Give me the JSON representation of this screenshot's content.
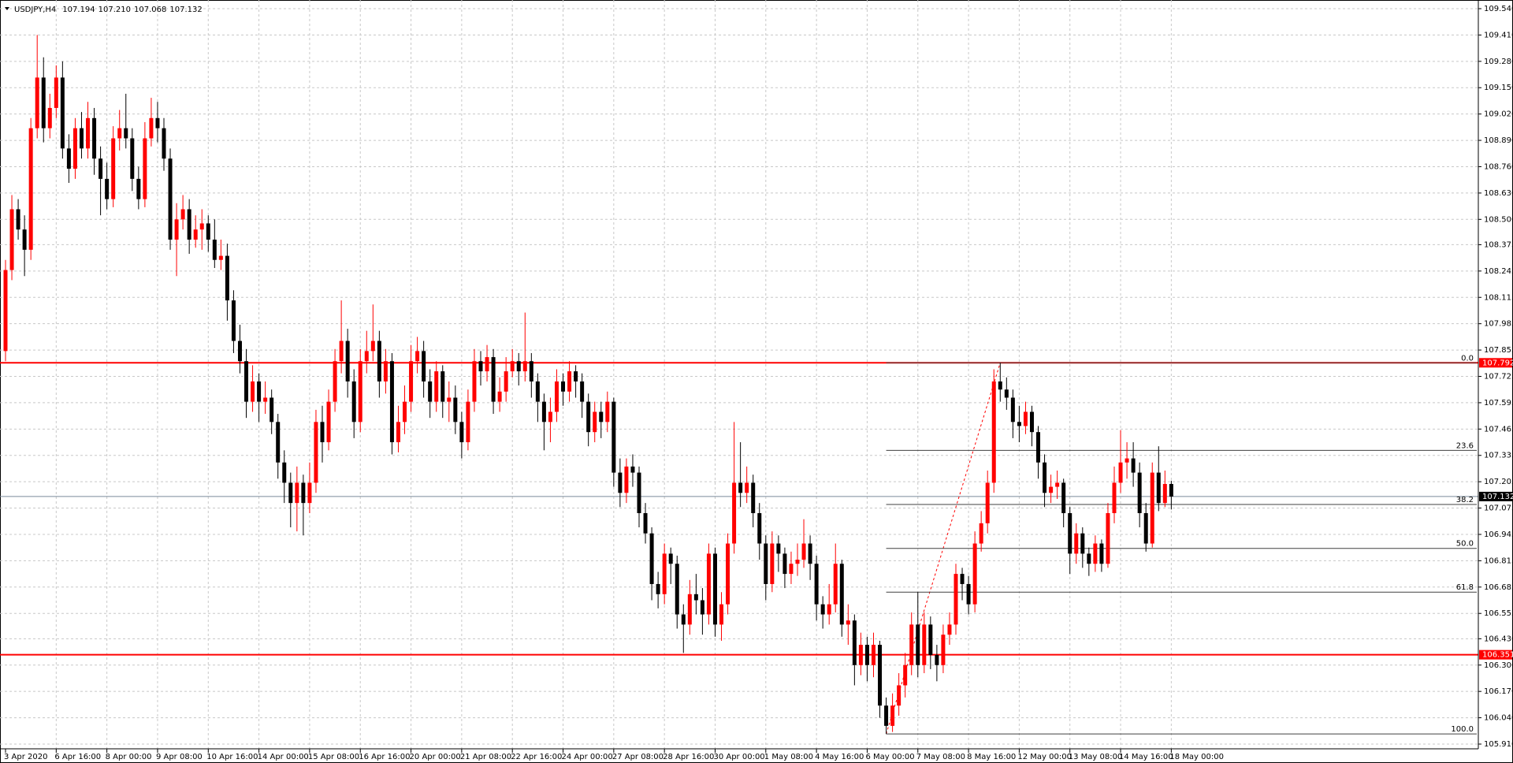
{
  "chart_data": {
    "type": "candlestick",
    "symbol": "USDJPY,H4",
    "header_values": [
      "107.194",
      "107.210",
      "107.068",
      "107.132"
    ],
    "up_color": "#ff0000",
    "down_color": "#000000",
    "grid": true,
    "ylim": [
      105.91,
      109.54
    ],
    "yticks": [
      {
        "value": 105.91,
        "label": "105.910"
      },
      {
        "value": 106.04,
        "label": "106.040"
      },
      {
        "value": 106.17,
        "label": "106.170"
      },
      {
        "value": 106.3,
        "label": "106.300"
      },
      {
        "value": 106.43,
        "label": "106.430"
      },
      106.555,
      106.685,
      106.815,
      106.945,
      107.075,
      107.205,
      107.335,
      107.465,
      107.595,
      107.725,
      107.855,
      107.985,
      108.115,
      108.245,
      108.375,
      {
        "value": 108.5,
        "label": "108.500"
      },
      {
        "value": 108.63,
        "label": "108.630"
      },
      {
        "value": 108.76,
        "label": "108.760"
      },
      {
        "value": 108.89,
        "label": "108.890"
      },
      {
        "value": 109.02,
        "label": "109.020"
      },
      {
        "value": 109.15,
        "label": "109.150"
      },
      {
        "value": 109.28,
        "label": "109.280"
      },
      {
        "value": 109.41,
        "label": "109.410"
      },
      {
        "value": 109.54,
        "label": "109.540"
      }
    ],
    "hlines": [
      {
        "value": 107.792,
        "color": "#ff0000"
      },
      {
        "value": 106.351,
        "color": "#ff0000"
      }
    ],
    "price_line": 107.132,
    "fib_levels": [
      {
        "value": 107.792,
        "label": "0.0"
      },
      {
        "value": 107.36,
        "label": "23.6"
      },
      {
        "value": 107.093,
        "label": "38.2"
      },
      {
        "value": 106.876,
        "label": "50.0"
      },
      {
        "value": 106.66,
        "label": "61.8"
      },
      {
        "value": 105.96,
        "label": "100.0"
      }
    ],
    "categories": [
      "3 Apr 2020",
      null,
      null,
      null,
      null,
      null,
      null,
      null,
      "6 Apr 16:00",
      null,
      null,
      null,
      null,
      null,
      null,
      null,
      "8 Apr 00:00",
      null,
      null,
      null,
      null,
      null,
      null,
      null,
      "9 Apr 08:00",
      null,
      null,
      null,
      null,
      null,
      null,
      null,
      "10 Apr 16:00",
      null,
      null,
      null,
      null,
      null,
      null,
      null,
      "14 Apr 00:00",
      null,
      null,
      null,
      null,
      null,
      null,
      null,
      "15 Apr 08:00",
      null,
      null,
      null,
      null,
      null,
      null,
      null,
      "16 Apr 16:00",
      null,
      null,
      null,
      null,
      null,
      null,
      null,
      "20 Apr 00:00",
      null,
      null,
      null,
      null,
      null,
      null,
      null,
      "21 Apr 08:00",
      null,
      null,
      null,
      null,
      null,
      null,
      null,
      "22 Apr 16:00",
      null,
      null,
      null,
      null,
      null,
      null,
      null,
      "24 Apr 00:00",
      null,
      null,
      null,
      null,
      null,
      null,
      null,
      "27 Apr 08:00",
      null,
      null,
      null,
      null,
      null,
      null,
      null,
      "28 Apr 16:00",
      null,
      null,
      null,
      null,
      null,
      null,
      null,
      "30 Apr 00:00",
      null,
      null,
      null,
      null,
      null,
      null,
      null,
      "1 May 08:00",
      null,
      null,
      null,
      null,
      null,
      null,
      null,
      "4 May 16:00",
      null,
      null,
      null,
      null,
      null,
      null,
      null,
      "6 May 00:00",
      null,
      null,
      null,
      null,
      null,
      null,
      null,
      "7 May 08:00",
      null,
      null,
      null,
      null,
      null,
      null,
      null,
      "8 May 16:00",
      null,
      null,
      null,
      null,
      null,
      null,
      null,
      "12 May 00:00",
      null,
      null,
      null,
      null,
      null,
      null,
      null,
      "13 May 08:00",
      null,
      null,
      null,
      null,
      null,
      null,
      null,
      "14 May 16:00",
      null,
      null,
      null,
      null,
      null,
      null,
      null,
      "18 May 00:00"
    ],
    "ohlc": [
      [
        107.85,
        108.3,
        107.8,
        108.25
      ],
      [
        108.25,
        108.62,
        108.2,
        108.55
      ],
      [
        108.55,
        108.6,
        108.4,
        108.45
      ],
      [
        108.45,
        108.52,
        108.22,
        108.35
      ],
      [
        108.35,
        109.0,
        108.3,
        108.95
      ],
      [
        108.95,
        109.41,
        108.9,
        109.2
      ],
      [
        109.2,
        109.3,
        108.88,
        108.95
      ],
      [
        108.95,
        109.12,
        108.9,
        109.05
      ],
      [
        109.05,
        109.26,
        109.0,
        109.2
      ],
      [
        109.2,
        109.28,
        108.8,
        108.85
      ],
      [
        108.85,
        108.92,
        108.68,
        108.75
      ],
      [
        108.75,
        109.0,
        108.7,
        108.95
      ],
      [
        108.95,
        109.03,
        108.8,
        108.85
      ],
      [
        108.85,
        109.08,
        108.8,
        109.0
      ],
      [
        109.0,
        109.05,
        108.72,
        108.8
      ],
      [
        108.8,
        108.86,
        108.52,
        108.7
      ],
      [
        108.7,
        108.78,
        108.55,
        108.6
      ],
      [
        108.6,
        108.96,
        108.56,
        108.9
      ],
      [
        108.9,
        109.04,
        108.84,
        108.95
      ],
      [
        108.95,
        109.12,
        108.85,
        108.9
      ],
      [
        108.9,
        108.95,
        108.64,
        108.7
      ],
      [
        108.7,
        108.76,
        108.55,
        108.6
      ],
      [
        108.6,
        108.98,
        108.56,
        108.9
      ],
      [
        108.9,
        109.1,
        108.86,
        109.0
      ],
      [
        109.0,
        109.08,
        108.88,
        108.95
      ],
      [
        108.95,
        109.0,
        108.74,
        108.8
      ],
      [
        108.8,
        108.85,
        108.35,
        108.4
      ],
      [
        108.4,
        108.58,
        108.22,
        108.5
      ],
      [
        108.5,
        108.62,
        108.45,
        108.55
      ],
      [
        108.55,
        108.6,
        108.33,
        108.4
      ],
      [
        108.4,
        108.52,
        108.36,
        108.45
      ],
      [
        108.45,
        108.55,
        108.35,
        108.48
      ],
      [
        108.48,
        108.52,
        108.34,
        108.4
      ],
      [
        108.4,
        108.5,
        108.26,
        108.3
      ],
      [
        108.3,
        108.4,
        108.25,
        108.32
      ],
      [
        108.32,
        108.38,
        108.0,
        108.1
      ],
      [
        108.1,
        108.15,
        107.84,
        107.9
      ],
      [
        107.9,
        107.98,
        107.74,
        107.8
      ],
      [
        107.8,
        107.86,
        107.52,
        107.6
      ],
      [
        107.6,
        107.78,
        107.55,
        107.7
      ],
      [
        107.7,
        107.74,
        107.5,
        107.6
      ],
      [
        107.6,
        107.7,
        107.54,
        107.62
      ],
      [
        107.62,
        107.66,
        107.44,
        107.5
      ],
      [
        107.5,
        107.54,
        107.22,
        107.3
      ],
      [
        107.3,
        107.36,
        107.1,
        107.2
      ],
      [
        107.2,
        107.25,
        106.98,
        107.1
      ],
      [
        107.1,
        107.28,
        106.96,
        107.2
      ],
      [
        107.2,
        107.24,
        106.94,
        107.1
      ],
      [
        107.1,
        107.3,
        107.05,
        107.2
      ],
      [
        107.2,
        107.56,
        107.15,
        107.5
      ],
      [
        107.5,
        107.58,
        107.3,
        107.4
      ],
      [
        107.4,
        107.66,
        107.36,
        107.6
      ],
      [
        107.6,
        107.86,
        107.55,
        107.8
      ],
      [
        107.8,
        108.1,
        107.74,
        107.9
      ],
      [
        107.9,
        107.96,
        107.62,
        107.7
      ],
      [
        107.7,
        107.76,
        107.42,
        107.5
      ],
      [
        107.5,
        107.86,
        107.45,
        107.8
      ],
      [
        107.8,
        107.95,
        107.74,
        107.85
      ],
      [
        107.85,
        108.08,
        107.8,
        107.9
      ],
      [
        107.9,
        107.95,
        107.62,
        107.7
      ],
      [
        107.7,
        107.86,
        107.64,
        107.8
      ],
      [
        107.8,
        107.84,
        107.34,
        107.4
      ],
      [
        107.4,
        107.58,
        107.35,
        107.5
      ],
      [
        107.5,
        107.68,
        107.44,
        107.6
      ],
      [
        107.6,
        107.88,
        107.55,
        107.8
      ],
      [
        107.8,
        107.92,
        107.74,
        107.85
      ],
      [
        107.85,
        107.9,
        107.62,
        107.7
      ],
      [
        107.7,
        107.76,
        107.52,
        107.6
      ],
      [
        107.6,
        107.8,
        107.55,
        107.75
      ],
      [
        107.75,
        107.78,
        107.52,
        107.6
      ],
      [
        107.6,
        107.7,
        107.5,
        107.62
      ],
      [
        107.62,
        107.68,
        107.44,
        107.5
      ],
      [
        107.5,
        107.55,
        107.32,
        107.4
      ],
      [
        107.4,
        107.66,
        107.36,
        107.6
      ],
      [
        107.6,
        107.86,
        107.55,
        107.8
      ],
      [
        107.8,
        107.85,
        107.68,
        107.75
      ],
      [
        107.75,
        107.88,
        107.7,
        107.82
      ],
      [
        107.82,
        107.86,
        107.54,
        107.6
      ],
      [
        107.6,
        107.72,
        107.55,
        107.65
      ],
      [
        107.65,
        107.82,
        107.6,
        107.75
      ],
      [
        107.75,
        107.86,
        107.72,
        107.8
      ],
      [
        107.8,
        107.84,
        107.68,
        107.75
      ],
      [
        107.75,
        108.04,
        107.7,
        107.8
      ],
      [
        107.8,
        107.84,
        107.62,
        107.7
      ],
      [
        107.7,
        107.74,
        107.5,
        107.6
      ],
      [
        107.6,
        107.64,
        107.36,
        107.5
      ],
      [
        107.5,
        107.62,
        107.4,
        107.55
      ],
      [
        107.55,
        107.76,
        107.5,
        107.7
      ],
      [
        107.7,
        107.74,
        107.58,
        107.65
      ],
      [
        107.65,
        107.8,
        107.6,
        107.75
      ],
      [
        107.75,
        107.78,
        107.62,
        107.7
      ],
      [
        107.7,
        107.74,
        107.52,
        107.6
      ],
      [
        107.6,
        107.64,
        107.38,
        107.45
      ],
      [
        107.45,
        107.6,
        107.4,
        107.55
      ],
      [
        107.55,
        107.6,
        107.42,
        107.5
      ],
      [
        107.5,
        107.65,
        107.45,
        107.6
      ],
      [
        107.6,
        107.62,
        107.18,
        107.25
      ],
      [
        107.25,
        107.32,
        107.08,
        107.15
      ],
      [
        107.15,
        107.32,
        107.1,
        107.28
      ],
      [
        107.28,
        107.34,
        107.18,
        107.25
      ],
      [
        107.25,
        107.28,
        106.98,
        107.05
      ],
      [
        107.05,
        107.1,
        106.9,
        106.95
      ],
      [
        106.95,
        106.98,
        106.62,
        106.7
      ],
      [
        106.7,
        106.76,
        106.58,
        106.65
      ],
      [
        106.65,
        106.9,
        106.6,
        106.85
      ],
      [
        106.85,
        106.88,
        106.7,
        106.8
      ],
      [
        106.8,
        106.84,
        106.48,
        106.55
      ],
      [
        106.55,
        106.6,
        106.36,
        106.5
      ],
      [
        106.5,
        106.72,
        106.45,
        106.65
      ],
      [
        106.65,
        106.75,
        106.55,
        106.62
      ],
      [
        106.62,
        106.68,
        106.45,
        106.55
      ],
      [
        106.55,
        106.9,
        106.5,
        106.85
      ],
      [
        106.85,
        106.88,
        106.44,
        106.5
      ],
      [
        106.5,
        106.66,
        106.42,
        106.6
      ],
      [
        106.6,
        106.95,
        106.55,
        106.9
      ],
      [
        106.9,
        107.5,
        106.85,
        107.2
      ],
      [
        107.2,
        107.4,
        107.08,
        107.15
      ],
      [
        107.15,
        107.28,
        107.1,
        107.2
      ],
      [
        107.2,
        107.24,
        106.98,
        107.05
      ],
      [
        107.05,
        107.1,
        106.82,
        106.9
      ],
      [
        106.9,
        106.94,
        106.62,
        106.7
      ],
      [
        106.7,
        106.96,
        106.66,
        106.9
      ],
      [
        106.9,
        106.94,
        106.76,
        106.85
      ],
      [
        106.85,
        106.88,
        106.68,
        106.75
      ],
      [
        106.75,
        106.86,
        106.7,
        106.8
      ],
      [
        106.8,
        106.9,
        106.74,
        106.82
      ],
      [
        106.82,
        107.02,
        106.78,
        106.9
      ],
      [
        106.9,
        106.94,
        106.72,
        106.8
      ],
      [
        106.8,
        106.84,
        106.52,
        106.6
      ],
      [
        106.6,
        106.64,
        106.48,
        106.55
      ],
      [
        106.55,
        106.7,
        106.5,
        106.6
      ],
      [
        106.6,
        106.9,
        106.56,
        106.8
      ],
      [
        106.8,
        106.82,
        106.44,
        106.5
      ],
      [
        106.5,
        106.6,
        106.4,
        106.52
      ],
      [
        106.52,
        106.55,
        106.2,
        106.3
      ],
      [
        106.3,
        106.46,
        106.25,
        106.4
      ],
      [
        106.4,
        106.44,
        106.22,
        106.3
      ],
      [
        106.3,
        106.46,
        106.24,
        106.4
      ],
      [
        106.4,
        106.42,
        106.04,
        106.1
      ],
      [
        106.1,
        106.14,
        105.96,
        106.0
      ],
      [
        106.0,
        106.16,
        105.97,
        106.1
      ],
      [
        106.1,
        106.26,
        106.05,
        106.2
      ],
      [
        106.2,
        106.36,
        106.14,
        106.3
      ],
      [
        106.3,
        106.56,
        106.25,
        106.5
      ],
      [
        106.5,
        106.66,
        106.24,
        106.3
      ],
      [
        106.3,
        106.56,
        106.26,
        106.5
      ],
      [
        106.5,
        106.54,
        106.28,
        106.35
      ],
      [
        106.35,
        106.4,
        106.22,
        106.3
      ],
      [
        106.3,
        106.5,
        106.26,
        106.45
      ],
      [
        106.45,
        106.56,
        106.4,
        106.5
      ],
      [
        106.5,
        106.8,
        106.45,
        106.75
      ],
      [
        106.75,
        106.78,
        106.62,
        106.7
      ],
      [
        106.7,
        106.74,
        106.55,
        106.6
      ],
      [
        106.6,
        106.96,
        106.56,
        106.9
      ],
      [
        106.9,
        107.06,
        106.86,
        107.0
      ],
      [
        107.0,
        107.26,
        106.95,
        107.2
      ],
      [
        107.2,
        107.76,
        107.15,
        107.7
      ],
      [
        107.7,
        107.792,
        107.6,
        107.66
      ],
      [
        107.66,
        107.72,
        107.56,
        107.62
      ],
      [
        107.62,
        107.66,
        107.42,
        107.5
      ],
      [
        107.5,
        107.58,
        107.4,
        107.48
      ],
      [
        107.48,
        107.6,
        107.44,
        107.55
      ],
      [
        107.55,
        107.58,
        107.38,
        107.45
      ],
      [
        107.45,
        107.48,
        107.22,
        107.3
      ],
      [
        107.3,
        107.34,
        107.08,
        107.15
      ],
      [
        107.15,
        107.24,
        107.1,
        107.18
      ],
      [
        107.18,
        107.26,
        107.12,
        107.2
      ],
      [
        107.2,
        107.22,
        106.98,
        107.05
      ],
      [
        107.05,
        107.08,
        106.75,
        106.85
      ],
      [
        106.85,
        107.0,
        106.8,
        106.95
      ],
      [
        106.95,
        106.98,
        106.78,
        106.85
      ],
      [
        106.85,
        106.88,
        106.74,
        106.8
      ],
      [
        106.8,
        106.94,
        106.76,
        106.9
      ],
      [
        106.9,
        106.92,
        106.76,
        106.8
      ],
      [
        106.8,
        107.1,
        106.78,
        107.05
      ],
      [
        107.05,
        107.28,
        107.0,
        107.2
      ],
      [
        107.2,
        107.46,
        107.15,
        107.3
      ],
      [
        107.3,
        107.4,
        107.22,
        107.32
      ],
      [
        107.32,
        107.4,
        107.18,
        107.25
      ],
      [
        107.25,
        107.3,
        106.98,
        107.05
      ],
      [
        107.05,
        107.1,
        106.86,
        106.9
      ],
      [
        106.9,
        107.3,
        106.88,
        107.25
      ],
      [
        107.25,
        107.38,
        107.06,
        107.1
      ],
      [
        107.1,
        107.26,
        107.08,
        107.194
      ],
      [
        107.194,
        107.21,
        107.068,
        107.132
      ]
    ]
  }
}
